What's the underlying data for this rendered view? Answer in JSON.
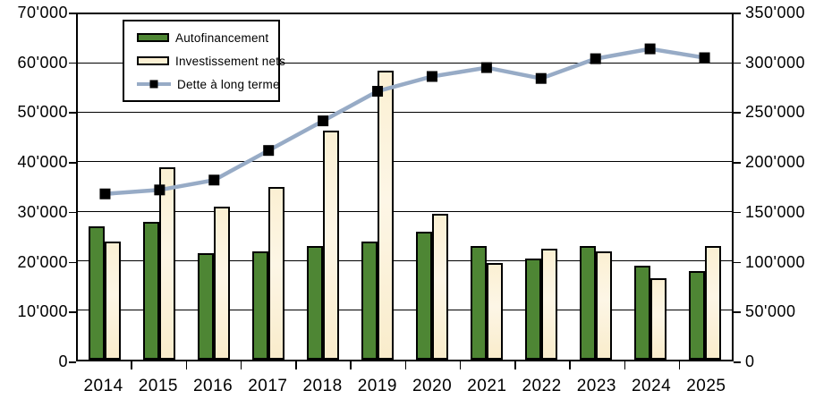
{
  "chart_data": {
    "type": "bar+line",
    "title": "",
    "categories": [
      "2014",
      "2015",
      "2016",
      "2017",
      "2018",
      "2019",
      "2020",
      "2021",
      "2022",
      "2023",
      "2024",
      "2025"
    ],
    "series": [
      {
        "name": "Autofinancement",
        "type": "bar",
        "axis": "left",
        "color": "#4e8634",
        "values": [
          27000,
          28000,
          21500,
          22000,
          23000,
          24000,
          26000,
          23000,
          20500,
          23000,
          19000,
          18000
        ]
      },
      {
        "name": "Investissement nets",
        "type": "bar",
        "axis": "left",
        "color": "#fbf0d3",
        "values": [
          24000,
          39000,
          31000,
          35000,
          46500,
          58500,
          29500,
          19500,
          22500,
          22000,
          16500,
          23000
        ]
      },
      {
        "name": "Dette à long terme",
        "type": "line",
        "axis": "right",
        "color": "#97abc6",
        "marker": "black-square",
        "values": [
          168000,
          172000,
          182000,
          212000,
          242000,
          272000,
          287000,
          296000,
          285000,
          305000,
          315000,
          306000
        ]
      }
    ],
    "left_axis": {
      "min": 0,
      "max": 70000,
      "step": 10000,
      "tick_labels_top_to_bottom": [
        "70'000",
        "60'000",
        "50'000",
        "40'000",
        "30'000",
        "20'000",
        "10'000",
        "0"
      ]
    },
    "right_axis": {
      "min": 0,
      "max": 350000,
      "step": 50000,
      "tick_labels_top_to_bottom": [
        "350'000",
        "300'000",
        "250'000",
        "200'000",
        "150'000",
        "100'000",
        "50'000",
        "0"
      ]
    },
    "grid": true,
    "legend": {
      "position": "top-left"
    }
  }
}
